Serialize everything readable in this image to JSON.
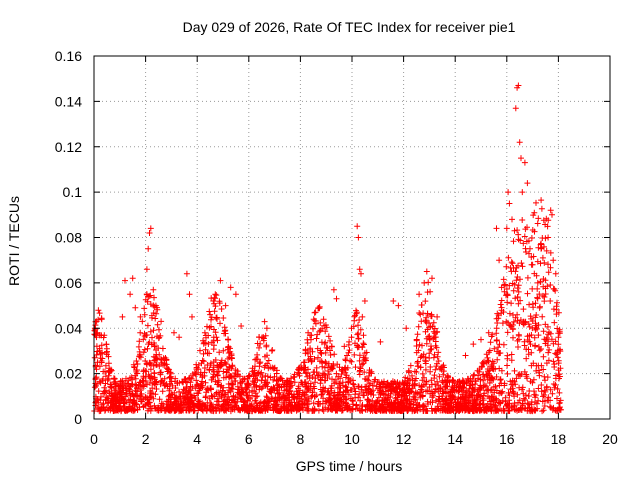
{
  "chart_data": {
    "type": "scatter",
    "title": "Day 029 of 2026, Rate Of TEC Index for receiver pie1",
    "xlabel": "GPS time / hours",
    "ylabel": "ROTI / TECUs",
    "xlim": [
      0,
      20
    ],
    "ylim": [
      0,
      0.16
    ],
    "xticks": [
      "0",
      "2",
      "4",
      "6",
      "8",
      "10",
      "12",
      "14",
      "16",
      "18",
      "20"
    ],
    "yticks": [
      "0",
      "0.02",
      "0.04",
      "0.06",
      "0.08",
      "0.1",
      "0.12",
      "0.14",
      "0.16"
    ],
    "grid": true,
    "marker": "+",
    "series": [
      {
        "name": "ROTI",
        "color": "#ff0000",
        "data_coverage_hours": [
          0,
          18.1
        ],
        "points": [
          [
            0.1,
            0.043
          ],
          [
            0.3,
            0.044
          ],
          [
            0.5,
            0.031
          ],
          [
            1.1,
            0.045
          ],
          [
            1.2,
            0.061
          ],
          [
            1.4,
            0.055
          ],
          [
            1.5,
            0.062
          ],
          [
            1.6,
            0.049
          ],
          [
            1.8,
            0.045
          ],
          [
            2.05,
            0.066
          ],
          [
            2.1,
            0.075
          ],
          [
            2.15,
            0.082
          ],
          [
            2.2,
            0.084
          ],
          [
            2.3,
            0.057
          ],
          [
            2.4,
            0.05
          ],
          [
            2.6,
            0.043
          ],
          [
            3.1,
            0.038
          ],
          [
            3.3,
            0.036
          ],
          [
            3.6,
            0.064
          ],
          [
            3.7,
            0.055
          ],
          [
            3.8,
            0.045
          ],
          [
            4.3,
            0.038
          ],
          [
            4.5,
            0.046
          ],
          [
            4.7,
            0.055
          ],
          [
            4.9,
            0.061
          ],
          [
            5.1,
            0.05
          ],
          [
            5.3,
            0.058
          ],
          [
            5.5,
            0.055
          ],
          [
            5.7,
            0.041
          ],
          [
            6.4,
            0.036
          ],
          [
            6.7,
            0.04
          ],
          [
            8.3,
            0.038
          ],
          [
            8.6,
            0.042
          ],
          [
            8.9,
            0.044
          ],
          [
            9.3,
            0.057
          ],
          [
            9.4,
            0.053
          ],
          [
            9.7,
            0.032
          ],
          [
            10.2,
            0.085
          ],
          [
            10.25,
            0.08
          ],
          [
            10.3,
            0.066
          ],
          [
            10.35,
            0.064
          ],
          [
            10.4,
            0.045
          ],
          [
            10.5,
            0.052
          ],
          [
            11.1,
            0.034
          ],
          [
            11.6,
            0.052
          ],
          [
            11.8,
            0.05
          ],
          [
            12.1,
            0.04
          ],
          [
            12.6,
            0.055
          ],
          [
            12.8,
            0.06
          ],
          [
            12.9,
            0.065
          ],
          [
            13.1,
            0.062
          ],
          [
            13.3,
            0.045
          ],
          [
            14.4,
            0.028
          ],
          [
            14.7,
            0.033
          ],
          [
            15.0,
            0.035
          ],
          [
            15.3,
            0.038
          ],
          [
            15.6,
            0.084
          ],
          [
            15.7,
            0.07
          ],
          [
            15.8,
            0.058
          ],
          [
            16.0,
            0.084
          ],
          [
            16.05,
            0.1
          ],
          [
            16.1,
            0.095
          ],
          [
            16.2,
            0.088
          ],
          [
            16.3,
            0.083
          ],
          [
            16.35,
            0.137
          ],
          [
            16.4,
            0.146
          ],
          [
            16.45,
            0.147
          ],
          [
            16.5,
            0.122
          ],
          [
            16.55,
            0.115
          ],
          [
            16.6,
            0.1
          ],
          [
            16.7,
            0.113
          ],
          [
            16.8,
            0.104
          ],
          [
            16.9,
            0.075
          ],
          [
            17.0,
            0.068
          ],
          [
            17.2,
            0.06
          ],
          [
            17.4,
            0.071
          ],
          [
            17.6,
            0.08
          ],
          [
            17.7,
            0.092
          ],
          [
            17.75,
            0.09
          ],
          [
            17.8,
            0.07
          ],
          [
            17.9,
            0.064
          ],
          [
            18.0,
            0.036
          ],
          [
            18.05,
            0.03
          ]
        ]
      }
    ]
  }
}
